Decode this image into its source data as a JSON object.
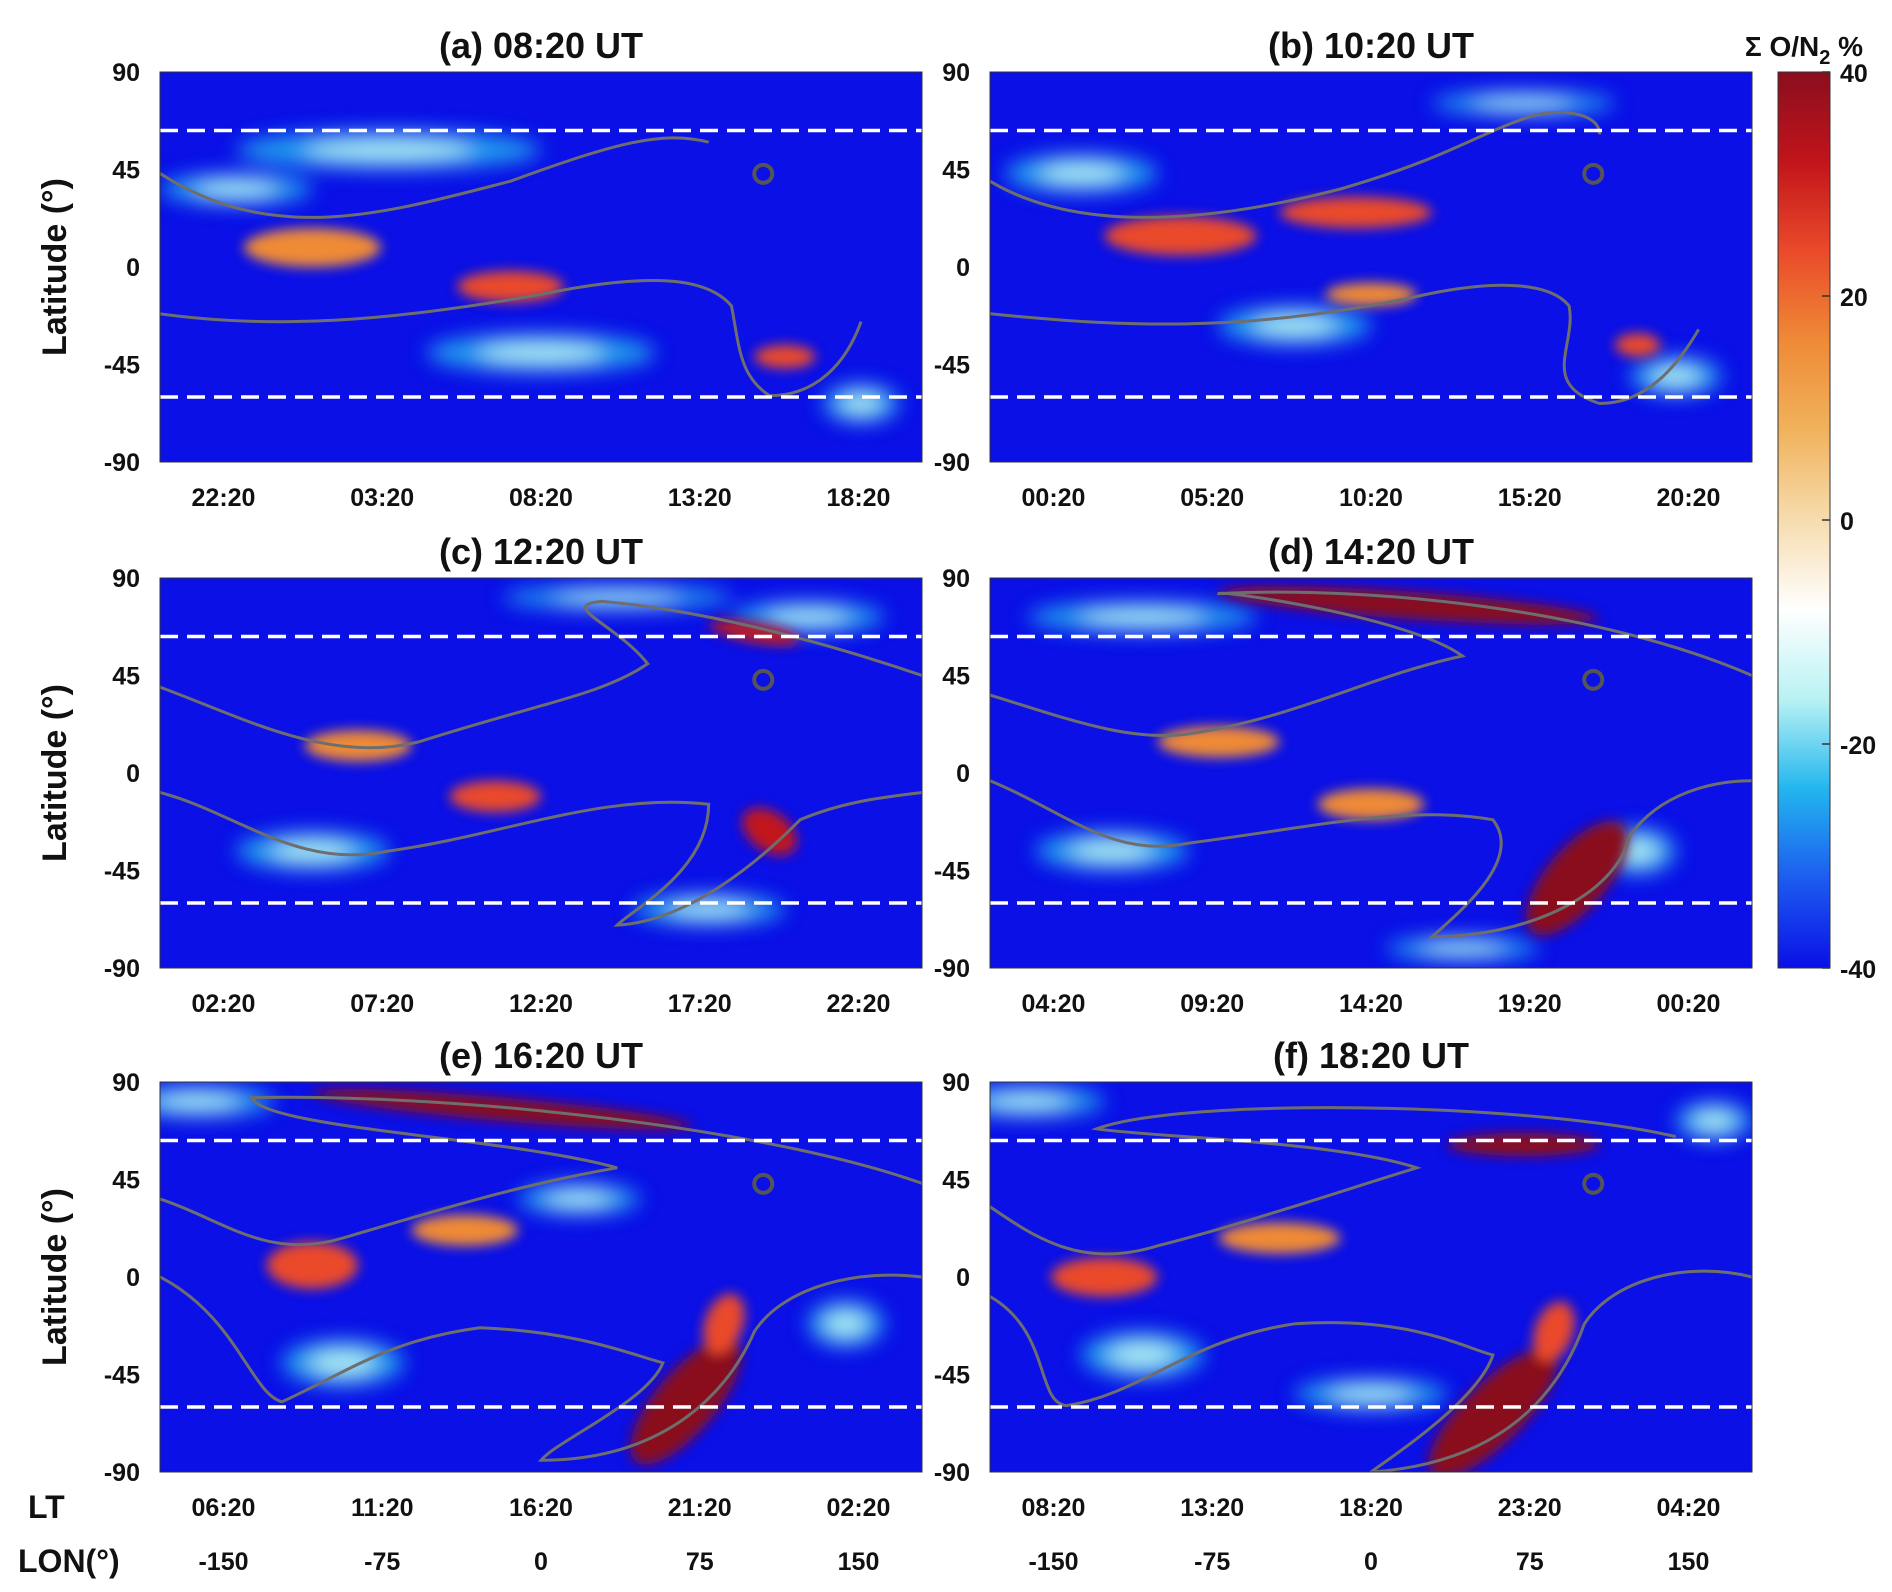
{
  "chart_data": {
    "type": "heatmap",
    "colorbar": {
      "label_prefix": "Σ O/N",
      "label_subscript": "2",
      "label_suffix": " %",
      "range": [
        -40,
        40
      ],
      "ticks": [
        "40",
        "20",
        "0",
        "-20",
        "-40"
      ],
      "colormap": [
        "#0a10e6",
        "#1d5cf0",
        "#23b6ee",
        "#b9f2f4",
        "#ffffff",
        "#f6dcae",
        "#f1b25c",
        "#ef8a36",
        "#ea4a2a",
        "#c2141b",
        "#8a0e1e"
      ]
    },
    "latitude_ticks": [
      "90",
      "45",
      "0",
      "-45",
      "-90"
    ],
    "longitude_label": "LON(°)",
    "longitude_ticks": [
      "-150",
      "-75",
      "0",
      "75",
      "150"
    ],
    "local_time_label": "LT",
    "ylabel": "Latitude (°)",
    "reference_latitudes": [
      63,
      -60
    ],
    "marker": {
      "lon": 105,
      "lat": 43,
      "shape": "circle"
    },
    "panels": [
      {
        "title": "(a) 08:20 UT",
        "lt_ticks": [
          "22:20",
          "03:20",
          "08:20",
          "13:20",
          "18:20"
        ]
      },
      {
        "title": "(b) 10:20 UT",
        "lt_ticks": [
          "00:20",
          "05:20",
          "10:20",
          "15:20",
          "20:20"
        ]
      },
      {
        "title": "(c) 12:20 UT",
        "lt_ticks": [
          "02:20",
          "07:20",
          "12:20",
          "17:20",
          "22:20"
        ]
      },
      {
        "title": "(d) 14:20 UT",
        "lt_ticks": [
          "04:20",
          "09:20",
          "14:20",
          "19:20",
          "00:20"
        ]
      },
      {
        "title": "(e) 16:20 UT",
        "lt_ticks": [
          "06:20",
          "11:20",
          "16:20",
          "21:20",
          "02:20"
        ]
      },
      {
        "title": "(f) 18:20 UT",
        "lt_ticks": [
          "08:20",
          "13:20",
          "18:20",
          "23:20",
          "04:20"
        ]
      }
    ]
  }
}
